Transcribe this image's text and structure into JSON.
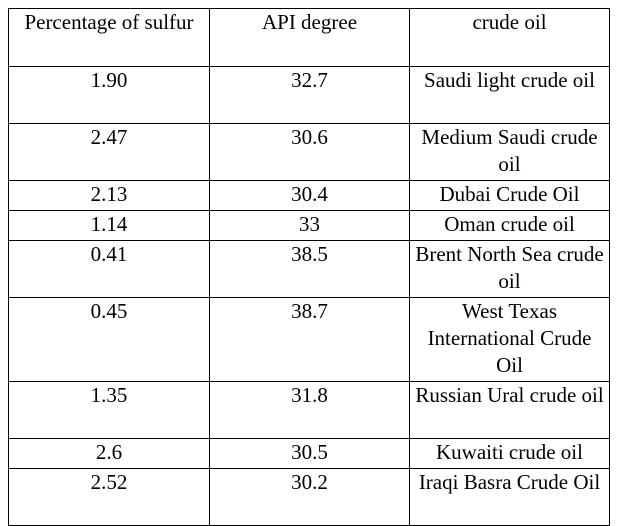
{
  "table": {
    "headers": [
      "Percentage of sulfur",
      "API degree",
      "crude oil"
    ],
    "rows": [
      {
        "sulfur": "1.90",
        "api": "32.7",
        "oil": "Saudi light crude oil"
      },
      {
        "sulfur": "2.47",
        "api": "30.6",
        "oil": "Medium Saudi crude oil"
      },
      {
        "sulfur": "2.13",
        "api": "30.4",
        "oil": "Dubai Crude Oil"
      },
      {
        "sulfur": "1.14",
        "api": "33",
        "oil": "Oman crude oil"
      },
      {
        "sulfur": "0.41",
        "api": "38.5",
        "oil": "Brent North Sea crude oil"
      },
      {
        "sulfur": "0.45",
        "api": "38.7",
        "oil": "West Texas International Crude Oil"
      },
      {
        "sulfur": "1.35",
        "api": "31.8",
        "oil": "Russian Ural crude oil"
      },
      {
        "sulfur": "2.6",
        "api": "30.5",
        "oil": "Kuwaiti crude oil"
      },
      {
        "sulfur": "2.52",
        "api": "30.2",
        "oil": "Iraqi Basra Crude Oil"
      }
    ]
  }
}
